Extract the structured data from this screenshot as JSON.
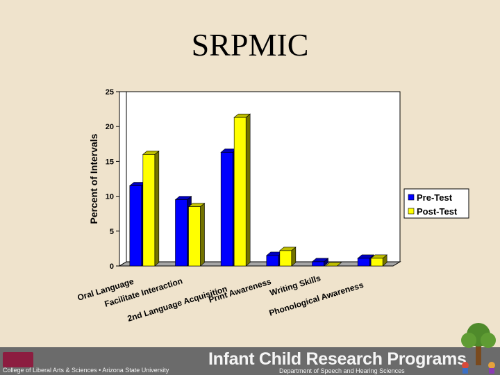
{
  "slide": {
    "title": "SRPMIC"
  },
  "footer": {
    "college": "College of Liberal Arts & Sciences • Arizona State University",
    "program": "Infant Child Research Programs",
    "department": "Department of Speech and Hearing Sciences"
  },
  "colors": {
    "background": "#efe3cc",
    "pre_test": "#0000ff",
    "post_test": "#ffff00",
    "footer": "#6b6b6b"
  },
  "chart_data": {
    "type": "bar",
    "title": "",
    "xlabel": "",
    "ylabel": "Percent of Intervals",
    "ylim": [
      0,
      25
    ],
    "yticks": [
      0,
      5,
      10,
      15,
      20,
      25
    ],
    "grid": false,
    "legend_position": "right",
    "categories": [
      "Oral Language",
      "Facilitate Interaction",
      "2nd Language Acquisition",
      "Print Awareness",
      "Writing Skills",
      "Phonological Awareness"
    ],
    "series": [
      {
        "name": "Pre-Test",
        "color": "#0000ff",
        "values": [
          11.5,
          9.5,
          16.3,
          1.5,
          0.6,
          1.1
        ]
      },
      {
        "name": "Post-Test",
        "color": "#ffff00",
        "values": [
          16.0,
          8.5,
          21.3,
          2.2,
          0.0,
          1.1
        ]
      }
    ]
  }
}
